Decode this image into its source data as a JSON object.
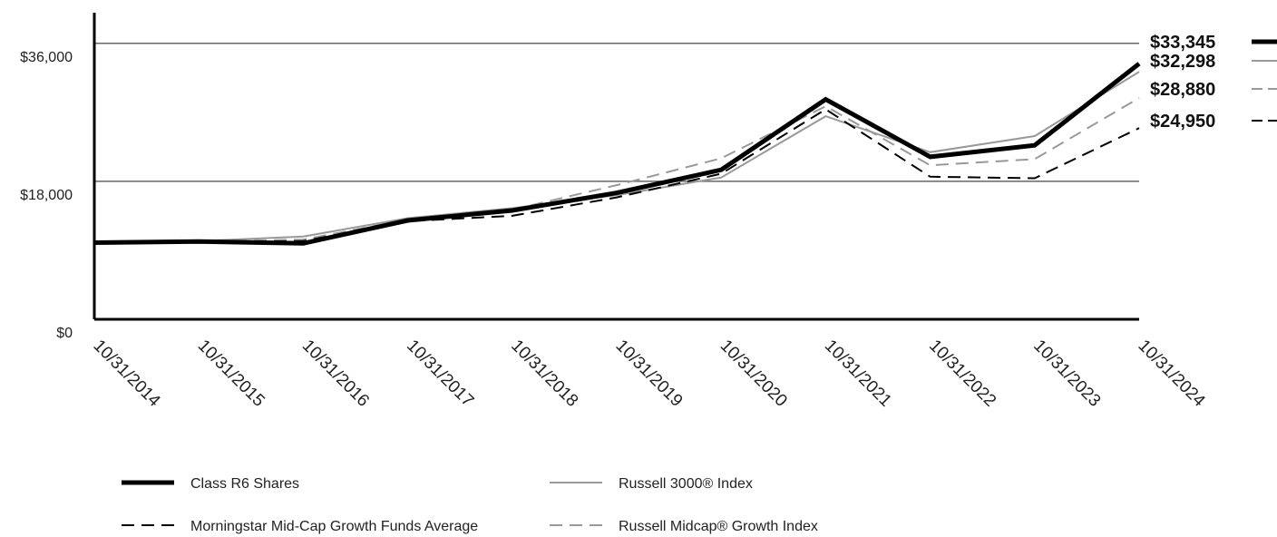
{
  "chart_data": {
    "type": "line",
    "title": "",
    "xlabel": "",
    "ylabel": "",
    "categories": [
      "10/31/2014",
      "10/31/2015",
      "10/31/2016",
      "10/31/2017",
      "10/31/2018",
      "10/31/2019",
      "10/31/2020",
      "10/31/2021",
      "10/31/2022",
      "10/31/2023",
      "10/31/2024"
    ],
    "ylim": [
      0,
      40000
    ],
    "yticks": [
      {
        "value": 0,
        "label": "$0"
      },
      {
        "value": 18000,
        "label": "$18,000"
      },
      {
        "value": 36000,
        "label": "$36,000"
      }
    ],
    "grid": "horizontal at 18,000 and 36,000",
    "legend_position": "bottom",
    "series": [
      {
        "name": "Class R6 Shares",
        "style": "solid-thick",
        "color": "#000000",
        "values": [
          10000,
          10150,
          9900,
          12900,
          14200,
          16500,
          19500,
          28700,
          21200,
          22700,
          33345
        ],
        "end_label": "$33,345"
      },
      {
        "name": "Russell 3000® Index",
        "style": "solid-thin",
        "color": "#999999",
        "values": [
          10000,
          10200,
          10800,
          13200,
          14500,
          16200,
          18500,
          26500,
          21800,
          23900,
          32298
        ],
        "end_label": "$32,298"
      },
      {
        "name": "Russell Midcap® Growth Index",
        "style": "dashed-gray",
        "color": "#999999",
        "values": [
          10000,
          10150,
          10400,
          13000,
          14300,
          17500,
          21000,
          27800,
          20100,
          20900,
          28880
        ],
        "end_label": "$28,880"
      },
      {
        "name": "Morningstar Mid-Cap Growth Funds Average",
        "style": "dashed-black",
        "color": "#000000",
        "values": [
          10000,
          10100,
          10200,
          12800,
          13500,
          15900,
          19000,
          27400,
          18600,
          18400,
          24950
        ],
        "end_label": "$24,950"
      }
    ]
  },
  "legend": {
    "items": [
      {
        "label": "Class R6 Shares",
        "style": "solid-thick"
      },
      {
        "label": "Russell 3000® Index",
        "style": "solid-thin"
      },
      {
        "label": "Morningstar Mid-Cap Growth Funds Average",
        "style": "dashed-black"
      },
      {
        "label": "Russell Midcap® Growth Index",
        "style": "dashed-gray"
      }
    ]
  }
}
